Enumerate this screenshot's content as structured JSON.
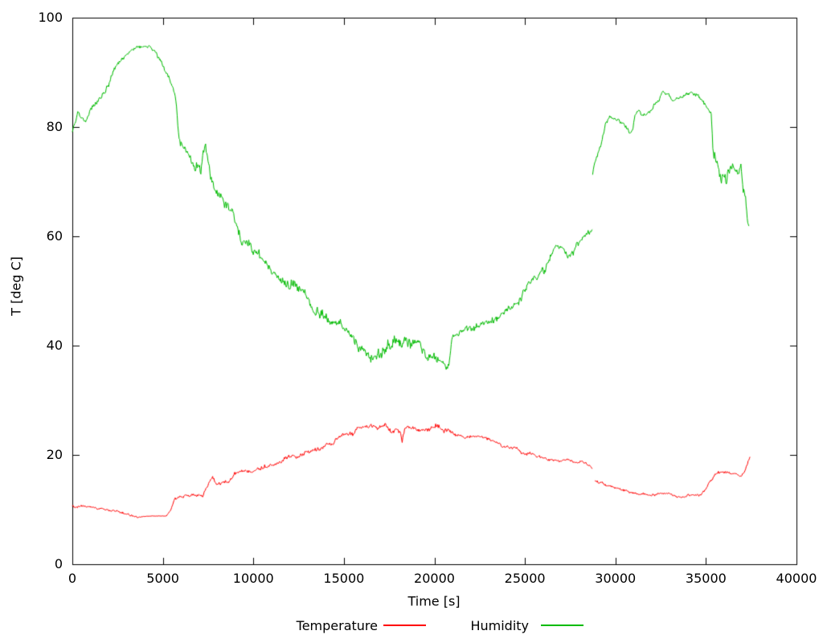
{
  "chart_data": {
    "type": "line",
    "title": "",
    "xlabel": "Time [s]",
    "ylabel": "T [deg C]",
    "xlim": [
      0,
      40000
    ],
    "ylim": [
      0,
      100
    ],
    "x_ticks": [
      0,
      5000,
      10000,
      15000,
      20000,
      25000,
      30000,
      35000,
      40000
    ],
    "y_ticks": [
      0,
      20,
      40,
      60,
      80,
      100
    ],
    "grid": false,
    "background": "#ffffff",
    "axis_color": "#000000",
    "legend_position": "bottom-center",
    "note": "points are [time_s, value, noise_amplitude]; each series has a data gap near t=28800",
    "series": [
      {
        "name": "Temperature",
        "color": "#ff0000",
        "segments": [
          [
            [
              0,
              10.7,
              0.25
            ],
            [
              700,
              10.4,
              0.25
            ],
            [
              1600,
              10.0,
              0.3
            ],
            [
              2500,
              9.5,
              0.3
            ],
            [
              3100,
              9.2,
              0.3
            ],
            [
              3600,
              8.8,
              0.25
            ],
            [
              4000,
              8.8,
              0.05
            ],
            [
              5200,
              8.8,
              0.05
            ],
            [
              5450,
              9.9,
              0.2
            ],
            [
              5650,
              12.0,
              0.3
            ],
            [
              6200,
              12.5,
              0.35
            ],
            [
              6900,
              12.6,
              0.35
            ],
            [
              7200,
              12.3,
              0.3
            ],
            [
              7450,
              14.0,
              0.3
            ],
            [
              7600,
              15.0,
              0.4
            ],
            [
              7750,
              15.9,
              0.4
            ],
            [
              8000,
              15.0,
              0.4
            ],
            [
              8600,
              15.3,
              0.45
            ],
            [
              9000,
              16.3,
              0.45
            ],
            [
              9600,
              16.8,
              0.45
            ],
            [
              10200,
              17.8,
              0.5
            ],
            [
              10800,
              18.3,
              0.5
            ],
            [
              11500,
              19.2,
              0.5
            ],
            [
              12200,
              19.8,
              0.5
            ],
            [
              13000,
              21.0,
              0.5
            ],
            [
              13800,
              21.6,
              0.5
            ],
            [
              14500,
              22.6,
              0.55
            ],
            [
              15200,
              23.6,
              0.55
            ],
            [
              15700,
              24.4,
              0.6
            ],
            [
              16500,
              24.8,
              0.6
            ],
            [
              17300,
              24.9,
              0.6
            ],
            [
              18100,
              24.6,
              0.6
            ],
            [
              18220,
              22.5,
              0.3
            ],
            [
              18350,
              24.6,
              0.6
            ],
            [
              19200,
              25.2,
              0.6
            ],
            [
              20000,
              24.9,
              0.6
            ],
            [
              20600,
              24.7,
              0.55
            ],
            [
              21100,
              23.4,
              0.4
            ],
            [
              21600,
              23.1,
              0.35
            ],
            [
              22600,
              23.0,
              0.35
            ],
            [
              23300,
              22.4,
              0.35
            ],
            [
              24100,
              21.4,
              0.35
            ],
            [
              25000,
              20.5,
              0.35
            ],
            [
              25600,
              20.1,
              0.35
            ],
            [
              26300,
              19.3,
              0.3
            ],
            [
              27100,
              19.0,
              0.3
            ],
            [
              27800,
              18.6,
              0.3
            ],
            [
              28400,
              18.5,
              0.3
            ],
            [
              28600,
              18.2,
              0.3
            ],
            [
              28730,
              17.7,
              0.2
            ]
          ],
          [
            [
              28860,
              15.3,
              0.3
            ],
            [
              29300,
              14.6,
              0.3
            ],
            [
              29900,
              13.8,
              0.3
            ],
            [
              30600,
              13.2,
              0.3
            ],
            [
              31400,
              12.9,
              0.3
            ],
            [
              32200,
              12.6,
              0.3
            ],
            [
              33000,
              12.7,
              0.3
            ],
            [
              33800,
              12.5,
              0.3
            ],
            [
              34600,
              12.8,
              0.3
            ],
            [
              35000,
              13.6,
              0.3
            ],
            [
              35290,
              15.4,
              0.35
            ],
            [
              35510,
              16.5,
              0.4
            ],
            [
              36000,
              16.4,
              0.4
            ],
            [
              36500,
              16.6,
              0.4
            ],
            [
              36980,
              16.4,
              0.4
            ],
            [
              37160,
              17.0,
              0.4
            ],
            [
              37430,
              19.3,
              0.3
            ]
          ]
        ]
      },
      {
        "name": "Humidity",
        "color": "#00bb00",
        "segments": [
          [
            [
              0,
              78.5,
              0.7
            ],
            [
              130,
              80.5,
              0.6
            ],
            [
              300,
              82.0,
              0.6
            ],
            [
              700,
              81.0,
              0.6
            ],
            [
              1100,
              84.0,
              0.6
            ],
            [
              1800,
              86.8,
              0.6
            ],
            [
              2350,
              90.4,
              0.5
            ],
            [
              2970,
              92.9,
              0.45
            ],
            [
              3550,
              94.3,
              0.4
            ],
            [
              4300,
              94.4,
              0.4
            ],
            [
              4750,
              92.9,
              0.45
            ],
            [
              5190,
              90.4,
              0.5
            ],
            [
              5460,
              88.2,
              0.5
            ],
            [
              5680,
              86.0,
              0.5
            ],
            [
              5900,
              78.0,
              0.8
            ],
            [
              6350,
              76.3,
              1.2
            ],
            [
              6790,
              73.4,
              1.3
            ],
            [
              7100,
              72.4,
              1.3
            ],
            [
              7330,
              76.3,
              1.0
            ],
            [
              7460,
              74.3,
              1.0
            ],
            [
              7640,
              69.9,
              1.0
            ],
            [
              7990,
              66.9,
              1.1
            ],
            [
              8440,
              65.4,
              1.2
            ],
            [
              8880,
              63.5,
              1.1
            ],
            [
              9320,
              59.5,
              1.1
            ],
            [
              10210,
              57.6,
              1.1
            ],
            [
              10790,
              55.7,
              1.2
            ],
            [
              11410,
              53.2,
              1.3
            ],
            [
              11990,
              52.2,
              1.3
            ],
            [
              12570,
              49.3,
              1.2
            ],
            [
              13190,
              47.8,
              1.2
            ],
            [
              13770,
              46.3,
              1.2
            ],
            [
              14520,
              44.9,
              1.2
            ],
            [
              15230,
              43.4,
              1.2
            ],
            [
              15850,
              40.3,
              1.3
            ],
            [
              16560,
              38.8,
              1.4
            ],
            [
              17320,
              39.0,
              1.4
            ],
            [
              18070,
              40.5,
              1.3
            ],
            [
              18780,
              39.3,
              1.3
            ],
            [
              19230,
              40.5,
              1.2
            ],
            [
              19670,
              38.6,
              1.2
            ],
            [
              20290,
              37.5,
              1.0
            ],
            [
              20650,
              36.9,
              0.9
            ],
            [
              20800,
              37.2,
              0.9
            ],
            [
              20960,
              42.0,
              0.8
            ],
            [
              21180,
              42.9,
              0.8
            ],
            [
              22070,
              42.5,
              0.8
            ],
            [
              22640,
              43.4,
              0.8
            ],
            [
              23230,
              44.9,
              0.8
            ],
            [
              23980,
              46.9,
              0.8
            ],
            [
              24730,
              48.8,
              0.9
            ],
            [
              25450,
              51.8,
              0.9
            ],
            [
              26200,
              54.7,
              1.0
            ],
            [
              26640,
              57.6,
              0.9
            ],
            [
              27090,
              57.2,
              0.9
            ],
            [
              27300,
              56.2,
              0.9
            ],
            [
              27670,
              57.2,
              0.9
            ],
            [
              28290,
              59.1,
              0.8
            ],
            [
              28730,
              61.4,
              0.7
            ]
          ],
          [
            [
              28740,
              71.2,
              0.5
            ],
            [
              28860,
              73.8,
              0.5
            ],
            [
              29170,
              76.8,
              0.5
            ],
            [
              29440,
              80.1,
              0.5
            ],
            [
              29750,
              81.9,
              0.5
            ],
            [
              30200,
              81.6,
              0.5
            ],
            [
              30720,
              79.4,
              0.5
            ],
            [
              30940,
              79.7,
              0.5
            ],
            [
              31080,
              82.6,
              0.5
            ],
            [
              31300,
              83.4,
              0.5
            ],
            [
              31520,
              82.2,
              0.5
            ],
            [
              31960,
              83.1,
              0.5
            ],
            [
              32410,
              84.9,
              0.5
            ],
            [
              32630,
              86.3,
              0.5
            ],
            [
              33160,
              85.1,
              0.5
            ],
            [
              33870,
              86.0,
              0.5
            ],
            [
              34320,
              86.3,
              0.5
            ],
            [
              34720,
              84.9,
              0.5
            ],
            [
              35070,
              83.1,
              0.4
            ],
            [
              35290,
              82.2,
              0.4
            ],
            [
              35380,
              76.3,
              1.0
            ],
            [
              35510,
              75.3,
              1.2
            ],
            [
              35820,
              71.3,
              1.4
            ],
            [
              36090,
              69.9,
              1.5
            ],
            [
              36400,
              71.3,
              1.4
            ],
            [
              36710,
              71.8,
              1.4
            ],
            [
              36930,
              74.1,
              1.2
            ],
            [
              37060,
              69.0,
              1.2
            ],
            [
              37190,
              68.0,
              1.0
            ],
            [
              37280,
              64.0,
              0.8
            ],
            [
              37370,
              62.3,
              0.5
            ]
          ]
        ]
      }
    ]
  },
  "legend": {
    "items": [
      {
        "label": "Temperature"
      },
      {
        "label": "Humidity"
      }
    ]
  }
}
